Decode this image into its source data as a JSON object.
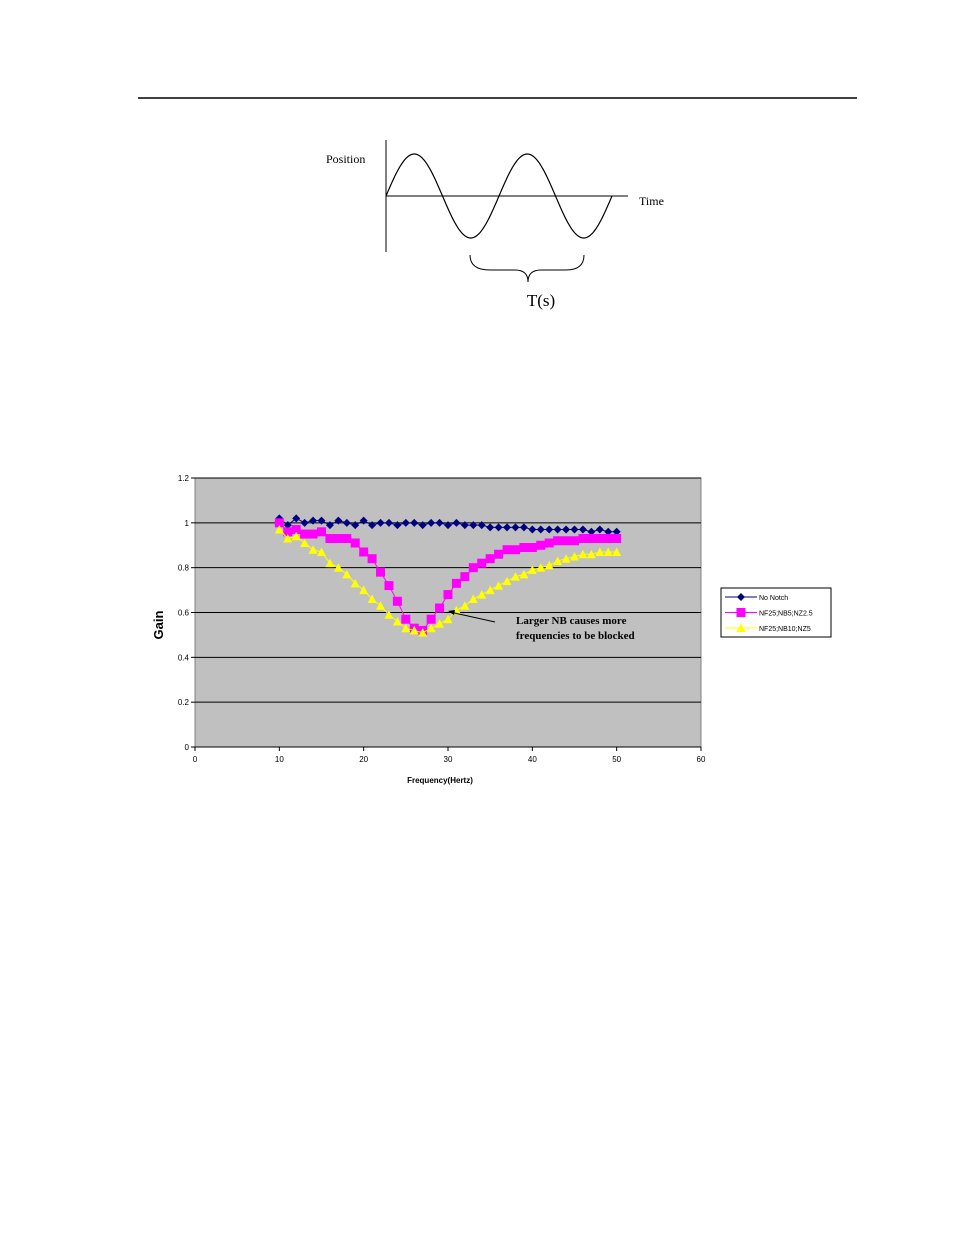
{
  "diagram": {
    "y_label": "Position",
    "x_label": "Time",
    "period_label": "T(s)"
  },
  "chart_data": {
    "type": "line",
    "y_label": "Gain",
    "x_label": "Frequency(Hertz)",
    "annotation": [
      "Larger NB causes more",
      "frequencies to be blocked"
    ],
    "x": [
      10,
      11,
      12,
      13,
      14,
      15,
      16,
      17,
      18,
      19,
      20,
      21,
      22,
      23,
      24,
      25,
      26,
      27,
      28,
      29,
      30,
      31,
      32,
      33,
      34,
      35,
      36,
      37,
      38,
      39,
      40,
      41,
      42,
      43,
      44,
      45,
      46,
      47,
      48,
      49,
      50
    ],
    "series": [
      {
        "name": "No Notch",
        "color": "#000080",
        "marker": "diamond",
        "values": [
          1.02,
          0.99,
          1.02,
          1.0,
          1.01,
          1.01,
          0.99,
          1.01,
          1.0,
          0.99,
          1.01,
          0.99,
          1.0,
          1.0,
          0.99,
          1.0,
          1.0,
          0.99,
          1.0,
          1.0,
          0.99,
          1.0,
          0.99,
          0.99,
          0.99,
          0.98,
          0.98,
          0.98,
          0.98,
          0.98,
          0.97,
          0.97,
          0.97,
          0.97,
          0.97,
          0.97,
          0.97,
          0.96,
          0.97,
          0.96,
          0.96
        ]
      },
      {
        "name": "NF25;NB5;NZ2.5",
        "color": "#ff00ff",
        "marker": "square",
        "values": [
          1.0,
          0.96,
          0.97,
          0.95,
          0.95,
          0.96,
          0.93,
          0.93,
          0.93,
          0.91,
          0.87,
          0.84,
          0.78,
          0.72,
          0.65,
          0.57,
          0.53,
          0.52,
          0.57,
          0.62,
          0.68,
          0.73,
          0.76,
          0.8,
          0.82,
          0.84,
          0.86,
          0.88,
          0.88,
          0.89,
          0.89,
          0.9,
          0.91,
          0.92,
          0.92,
          0.92,
          0.93,
          0.93,
          0.93,
          0.93,
          0.93
        ]
      },
      {
        "name": "NF25;NB10;NZ5",
        "color": "#ffff00",
        "marker": "triangle",
        "values": [
          0.97,
          0.93,
          0.94,
          0.91,
          0.88,
          0.87,
          0.82,
          0.8,
          0.77,
          0.73,
          0.7,
          0.66,
          0.63,
          0.59,
          0.56,
          0.53,
          0.52,
          0.51,
          0.53,
          0.55,
          0.57,
          0.61,
          0.63,
          0.66,
          0.68,
          0.7,
          0.72,
          0.74,
          0.76,
          0.77,
          0.79,
          0.8,
          0.81,
          0.83,
          0.84,
          0.85,
          0.86,
          0.86,
          0.87,
          0.87,
          0.87
        ]
      }
    ],
    "xlim": [
      0,
      60
    ],
    "xticks": [
      0,
      10,
      20,
      30,
      40,
      50,
      60
    ],
    "ylim": [
      0,
      1.2
    ],
    "yticks": [
      0,
      0.2,
      0.4,
      0.6,
      0.8,
      1,
      1.2
    ],
    "grid": true,
    "plot_background": "#c0c0c0",
    "legend": "right"
  }
}
